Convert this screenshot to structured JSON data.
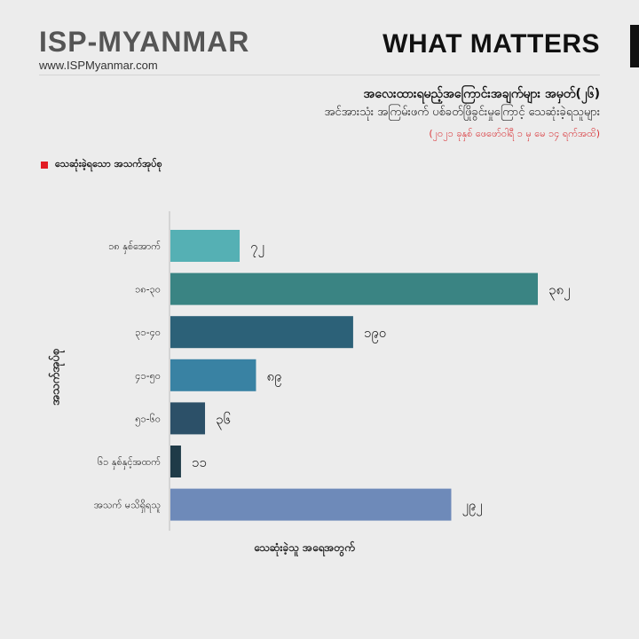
{
  "header": {
    "brand": "ISP-MYANMAR",
    "url": "www.ISPMyanmar.com",
    "tagline": "WHAT MATTERS",
    "title": "အလေးထားရမည့်အကြောင်းအချက်များ အမှတ်(၂၆)",
    "subtitle": "အင်အားသုံး အကြမ်းဖက် ပစ်ခတ်ဖြိုခွင်းမှုကြောင့် သေဆုံးခဲ့ရသူများ",
    "date": "(၂၀၂၁ ခုနှစ် ဖေဖော်ဝါရီ ၁ မှ မေ ၁၄ ရက်အထိ)"
  },
  "legend": {
    "label": "သေဆုံးခဲ့ရသော အသက်အုပ်စု",
    "color": "#e21b23"
  },
  "chart_data": {
    "type": "bar",
    "orientation": "horizontal",
    "categories": [
      "၁၈ နှစ်အောက်",
      "၁၈-၃၀",
      "၃၁-၄၀",
      "၄၁-၅၀",
      "၅၁-၆၀",
      "၆၁ နှစ်နှင့်အထက်",
      "အသက် မသိရှိရသူ"
    ],
    "values": [
      72,
      382,
      190,
      89,
      36,
      11,
      292
    ],
    "value_labels": [
      "၇၂",
      "၃၈၂",
      "၁၉၀",
      "၈၉",
      "၃၆",
      "၁၁",
      "၂၉၂"
    ],
    "colors": [
      "#55b0b4",
      "#3a8483",
      "#2c6178",
      "#3982a3",
      "#2c5068",
      "#1f3b48",
      "#6e8ab9"
    ],
    "xlabel": "သေဆုံးခဲ့သူ အရေအတွက်",
    "ylabel": "အသက်အုပ်စု",
    "xlim": [
      0,
      382
    ]
  }
}
